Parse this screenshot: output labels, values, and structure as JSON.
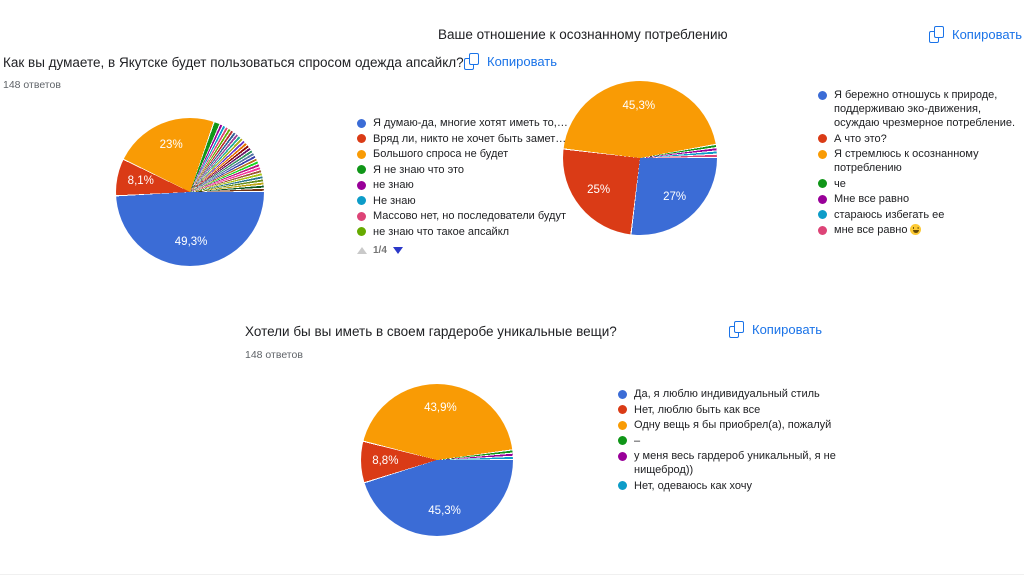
{
  "questions": [
    {
      "id": "upcycle-demand",
      "title": "Как вы думаете, в Якутске будет пользоваться спросом одежда апсайкл?",
      "responses_count": "148 ответов",
      "copy_label": "Копировать",
      "pagination": {
        "current_page": "1/4"
      },
      "legend": [
        {
          "label": "Я думаю-да, многие хотят иметь то,…",
          "color": "#3B6CD6"
        },
        {
          "label": "Вряд ли, никто не хочет быть замет…",
          "color": "#DA3B16"
        },
        {
          "label": "Большого спроса не будет",
          "color": "#F99B05"
        },
        {
          "label": "Я не знаю что это",
          "color": "#109618"
        },
        {
          "label": "не знаю",
          "color": "#990099"
        },
        {
          "label": "Не знаю",
          "color": "#0D9CC8"
        },
        {
          "label": "Массово нет, но последователи будут",
          "color": "#DD4477"
        },
        {
          "label": "не знаю что такое апсайкл",
          "color": "#66AA00"
        }
      ]
    },
    {
      "id": "conscious-consumption",
      "title": "Ваше отношение к осознанному потреблению",
      "copy_label": "Копировать",
      "legend": [
        {
          "label": "Я бережно отношусь к природе, поддерживаю эко-движения, осуждаю чрезмерное потребление.",
          "color": "#3B6CD6"
        },
        {
          "label": "А что это?",
          "color": "#DA3B16"
        },
        {
          "label": "Я стремлюсь к осознанному потреблению",
          "color": "#F99B05"
        },
        {
          "label": "че",
          "color": "#109618"
        },
        {
          "label": "Мне все равно",
          "color": "#990099"
        },
        {
          "label": "стараюсь избегать ее",
          "color": "#0D9CC8"
        },
        {
          "label": "мне все равно 😝",
          "color": "#DD4477"
        }
      ]
    },
    {
      "id": "unique-wardrobe",
      "title": "Хотели бы вы иметь в своем гардеробе уникальные вещи?",
      "responses_count": "148 ответов",
      "copy_label": "Копировать",
      "legend": [
        {
          "label": "Да, я люблю индивидуальный стиль",
          "color": "#3B6CD6"
        },
        {
          "label": "Нет, люблю быть как все",
          "color": "#DA3B16"
        },
        {
          "label": "Одну вещь я бы приобрел(а), пожалуй",
          "color": "#F99B05"
        },
        {
          "label": "–",
          "color": "#109618"
        },
        {
          "label": "у меня весь гардероб уникальный, я не нищеброд))",
          "color": "#990099"
        },
        {
          "label": "Нет, одеваюсь как хочу",
          "color": "#0D9CC8"
        }
      ]
    }
  ],
  "chart_data": [
    {
      "type": "pie",
      "question": "Как вы думаете, в Якутске будет пользоваться спросом одежда апсайкл?",
      "total_responses": 148,
      "start_at": "3-oclock-clockwise",
      "segments": [
        {
          "label": "Я думаю-да, многие хотят иметь то,…",
          "value": 49.3,
          "display_label": "49,3%",
          "color": "#3B6CD6"
        },
        {
          "label": "Вряд ли, никто не хочет быть замет…",
          "value": 8.1,
          "display_label": "8,1%",
          "color": "#DA3B16"
        },
        {
          "label": "Большого спроса не будет",
          "value": 23,
          "display_label": "23%",
          "color": "#F99B05"
        },
        {
          "label": "Я не знаю что это",
          "value": 1.35,
          "color": "#109618"
        }
      ],
      "others": {
        "count": 27,
        "percent_each": 0.675,
        "colors": [
          "#990099",
          "#0D9CC8",
          "#DD4477",
          "#66AA00",
          "#B82E2E",
          "#316395",
          "#994499",
          "#22AA99",
          "#AAAA11",
          "#6633CC",
          "#E67300",
          "#8B0707",
          "#651067",
          "#329262",
          "#5574A6",
          "#3B3EAC",
          "#B77322",
          "#16D620",
          "#B91383",
          "#F4359E",
          "#9C5935",
          "#A9C413",
          "#2A778D",
          "#668D1C",
          "#BEA413",
          "#0C5922",
          "#743411"
        ]
      }
    },
    {
      "type": "pie",
      "question": "Ваше отношение к осознанному потреблению",
      "total_responses": 148,
      "start_at": "3-oclock-clockwise",
      "segments": [
        {
          "label": "Я бережно отношусь к природе, поддерживаю эко-движения, осуждаю чрезмерное потребление.",
          "value": 27,
          "display_label": "27%",
          "color": "#3B6CD6"
        },
        {
          "label": "А что это?",
          "value": 25,
          "display_label": "25%",
          "color": "#DA3B16"
        },
        {
          "label": "Я стремлюсь к осознанному потреблению",
          "value": 45.3,
          "display_label": "45,3%",
          "color": "#F99B05"
        },
        {
          "label": "че",
          "value": 0.675,
          "color": "#109618"
        },
        {
          "label": "Мне все равно",
          "value": 0.675,
          "color": "#990099"
        },
        {
          "label": "стараюсь избегать ее",
          "value": 0.675,
          "color": "#0D9CC8"
        },
        {
          "label": "мне все равно 😝",
          "value": 0.675,
          "color": "#DD4477"
        }
      ]
    },
    {
      "type": "pie",
      "question": "Хотели бы вы иметь в своем гардеробе уникальные вещи?",
      "total_responses": 148,
      "start_at": "3-oclock-clockwise",
      "segments": [
        {
          "label": "Да, я люблю индивидуальный стиль",
          "value": 45.3,
          "display_label": "45,3%",
          "color": "#3B6CD6"
        },
        {
          "label": "Нет, люблю быть как все",
          "value": 8.8,
          "display_label": "8,8%",
          "color": "#DA3B16"
        },
        {
          "label": "Одну вещь я бы приобрел(а), пожалуй",
          "value": 43.9,
          "display_label": "43,9%",
          "color": "#F99B05"
        },
        {
          "label": "–",
          "value": 0.675,
          "color": "#109618"
        },
        {
          "label": "у меня весь гардероб уникальный, я не нищеброд))",
          "value": 0.675,
          "color": "#990099"
        },
        {
          "label": "Нет, одеваюсь как хочу",
          "value": 0.675,
          "color": "#0D9CC8"
        }
      ]
    }
  ],
  "ui_colors": {
    "copy_accent": "#1a73e8",
    "text_primary": "#202124",
    "text_secondary": "#5f6368",
    "pager_arrow_enabled": "#2b38c8",
    "pager_arrow_disabled": "#c9c9c9"
  }
}
